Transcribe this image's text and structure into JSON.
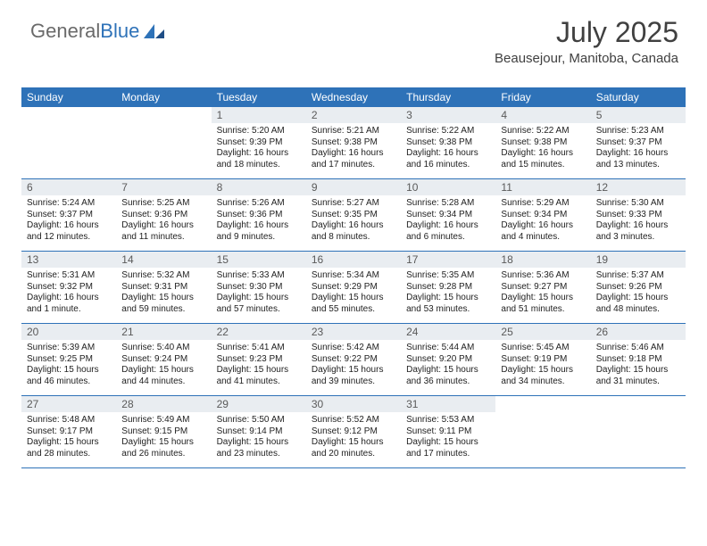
{
  "brand": {
    "part1": "General",
    "part2": "Blue"
  },
  "colors": {
    "accent": "#2e72b8",
    "daynum_bg": "#e9edf1",
    "text": "#222222",
    "muted": "#6a6a6a",
    "background": "#ffffff"
  },
  "typography": {
    "base_font": "Arial",
    "title_fontsize": 32,
    "subtitle_fontsize": 15,
    "head_fontsize": 12,
    "daynum_fontsize": 12,
    "detail_fontsize": 10
  },
  "header": {
    "title": "July 2025",
    "location": "Beausejour, Manitoba, Canada"
  },
  "calendar": {
    "type": "calendar",
    "columns": [
      "Sunday",
      "Monday",
      "Tuesday",
      "Wednesday",
      "Thursday",
      "Friday",
      "Saturday"
    ],
    "start_day_index": 2,
    "days": [
      {
        "n": "1",
        "sunrise": "Sunrise: 5:20 AM",
        "sunset": "Sunset: 9:39 PM",
        "daylight1": "Daylight: 16 hours",
        "daylight2": "and 18 minutes."
      },
      {
        "n": "2",
        "sunrise": "Sunrise: 5:21 AM",
        "sunset": "Sunset: 9:38 PM",
        "daylight1": "Daylight: 16 hours",
        "daylight2": "and 17 minutes."
      },
      {
        "n": "3",
        "sunrise": "Sunrise: 5:22 AM",
        "sunset": "Sunset: 9:38 PM",
        "daylight1": "Daylight: 16 hours",
        "daylight2": "and 16 minutes."
      },
      {
        "n": "4",
        "sunrise": "Sunrise: 5:22 AM",
        "sunset": "Sunset: 9:38 PM",
        "daylight1": "Daylight: 16 hours",
        "daylight2": "and 15 minutes."
      },
      {
        "n": "5",
        "sunrise": "Sunrise: 5:23 AM",
        "sunset": "Sunset: 9:37 PM",
        "daylight1": "Daylight: 16 hours",
        "daylight2": "and 13 minutes."
      },
      {
        "n": "6",
        "sunrise": "Sunrise: 5:24 AM",
        "sunset": "Sunset: 9:37 PM",
        "daylight1": "Daylight: 16 hours",
        "daylight2": "and 12 minutes."
      },
      {
        "n": "7",
        "sunrise": "Sunrise: 5:25 AM",
        "sunset": "Sunset: 9:36 PM",
        "daylight1": "Daylight: 16 hours",
        "daylight2": "and 11 minutes."
      },
      {
        "n": "8",
        "sunrise": "Sunrise: 5:26 AM",
        "sunset": "Sunset: 9:36 PM",
        "daylight1": "Daylight: 16 hours",
        "daylight2": "and 9 minutes."
      },
      {
        "n": "9",
        "sunrise": "Sunrise: 5:27 AM",
        "sunset": "Sunset: 9:35 PM",
        "daylight1": "Daylight: 16 hours",
        "daylight2": "and 8 minutes."
      },
      {
        "n": "10",
        "sunrise": "Sunrise: 5:28 AM",
        "sunset": "Sunset: 9:34 PM",
        "daylight1": "Daylight: 16 hours",
        "daylight2": "and 6 minutes."
      },
      {
        "n": "11",
        "sunrise": "Sunrise: 5:29 AM",
        "sunset": "Sunset: 9:34 PM",
        "daylight1": "Daylight: 16 hours",
        "daylight2": "and 4 minutes."
      },
      {
        "n": "12",
        "sunrise": "Sunrise: 5:30 AM",
        "sunset": "Sunset: 9:33 PM",
        "daylight1": "Daylight: 16 hours",
        "daylight2": "and 3 minutes."
      },
      {
        "n": "13",
        "sunrise": "Sunrise: 5:31 AM",
        "sunset": "Sunset: 9:32 PM",
        "daylight1": "Daylight: 16 hours",
        "daylight2": "and 1 minute."
      },
      {
        "n": "14",
        "sunrise": "Sunrise: 5:32 AM",
        "sunset": "Sunset: 9:31 PM",
        "daylight1": "Daylight: 15 hours",
        "daylight2": "and 59 minutes."
      },
      {
        "n": "15",
        "sunrise": "Sunrise: 5:33 AM",
        "sunset": "Sunset: 9:30 PM",
        "daylight1": "Daylight: 15 hours",
        "daylight2": "and 57 minutes."
      },
      {
        "n": "16",
        "sunrise": "Sunrise: 5:34 AM",
        "sunset": "Sunset: 9:29 PM",
        "daylight1": "Daylight: 15 hours",
        "daylight2": "and 55 minutes."
      },
      {
        "n": "17",
        "sunrise": "Sunrise: 5:35 AM",
        "sunset": "Sunset: 9:28 PM",
        "daylight1": "Daylight: 15 hours",
        "daylight2": "and 53 minutes."
      },
      {
        "n": "18",
        "sunrise": "Sunrise: 5:36 AM",
        "sunset": "Sunset: 9:27 PM",
        "daylight1": "Daylight: 15 hours",
        "daylight2": "and 51 minutes."
      },
      {
        "n": "19",
        "sunrise": "Sunrise: 5:37 AM",
        "sunset": "Sunset: 9:26 PM",
        "daylight1": "Daylight: 15 hours",
        "daylight2": "and 48 minutes."
      },
      {
        "n": "20",
        "sunrise": "Sunrise: 5:39 AM",
        "sunset": "Sunset: 9:25 PM",
        "daylight1": "Daylight: 15 hours",
        "daylight2": "and 46 minutes."
      },
      {
        "n": "21",
        "sunrise": "Sunrise: 5:40 AM",
        "sunset": "Sunset: 9:24 PM",
        "daylight1": "Daylight: 15 hours",
        "daylight2": "and 44 minutes."
      },
      {
        "n": "22",
        "sunrise": "Sunrise: 5:41 AM",
        "sunset": "Sunset: 9:23 PM",
        "daylight1": "Daylight: 15 hours",
        "daylight2": "and 41 minutes."
      },
      {
        "n": "23",
        "sunrise": "Sunrise: 5:42 AM",
        "sunset": "Sunset: 9:22 PM",
        "daylight1": "Daylight: 15 hours",
        "daylight2": "and 39 minutes."
      },
      {
        "n": "24",
        "sunrise": "Sunrise: 5:44 AM",
        "sunset": "Sunset: 9:20 PM",
        "daylight1": "Daylight: 15 hours",
        "daylight2": "and 36 minutes."
      },
      {
        "n": "25",
        "sunrise": "Sunrise: 5:45 AM",
        "sunset": "Sunset: 9:19 PM",
        "daylight1": "Daylight: 15 hours",
        "daylight2": "and 34 minutes."
      },
      {
        "n": "26",
        "sunrise": "Sunrise: 5:46 AM",
        "sunset": "Sunset: 9:18 PM",
        "daylight1": "Daylight: 15 hours",
        "daylight2": "and 31 minutes."
      },
      {
        "n": "27",
        "sunrise": "Sunrise: 5:48 AM",
        "sunset": "Sunset: 9:17 PM",
        "daylight1": "Daylight: 15 hours",
        "daylight2": "and 28 minutes."
      },
      {
        "n": "28",
        "sunrise": "Sunrise: 5:49 AM",
        "sunset": "Sunset: 9:15 PM",
        "daylight1": "Daylight: 15 hours",
        "daylight2": "and 26 minutes."
      },
      {
        "n": "29",
        "sunrise": "Sunrise: 5:50 AM",
        "sunset": "Sunset: 9:14 PM",
        "daylight1": "Daylight: 15 hours",
        "daylight2": "and 23 minutes."
      },
      {
        "n": "30",
        "sunrise": "Sunrise: 5:52 AM",
        "sunset": "Sunset: 9:12 PM",
        "daylight1": "Daylight: 15 hours",
        "daylight2": "and 20 minutes."
      },
      {
        "n": "31",
        "sunrise": "Sunrise: 5:53 AM",
        "sunset": "Sunset: 9:11 PM",
        "daylight1": "Daylight: 15 hours",
        "daylight2": "and 17 minutes."
      }
    ]
  }
}
